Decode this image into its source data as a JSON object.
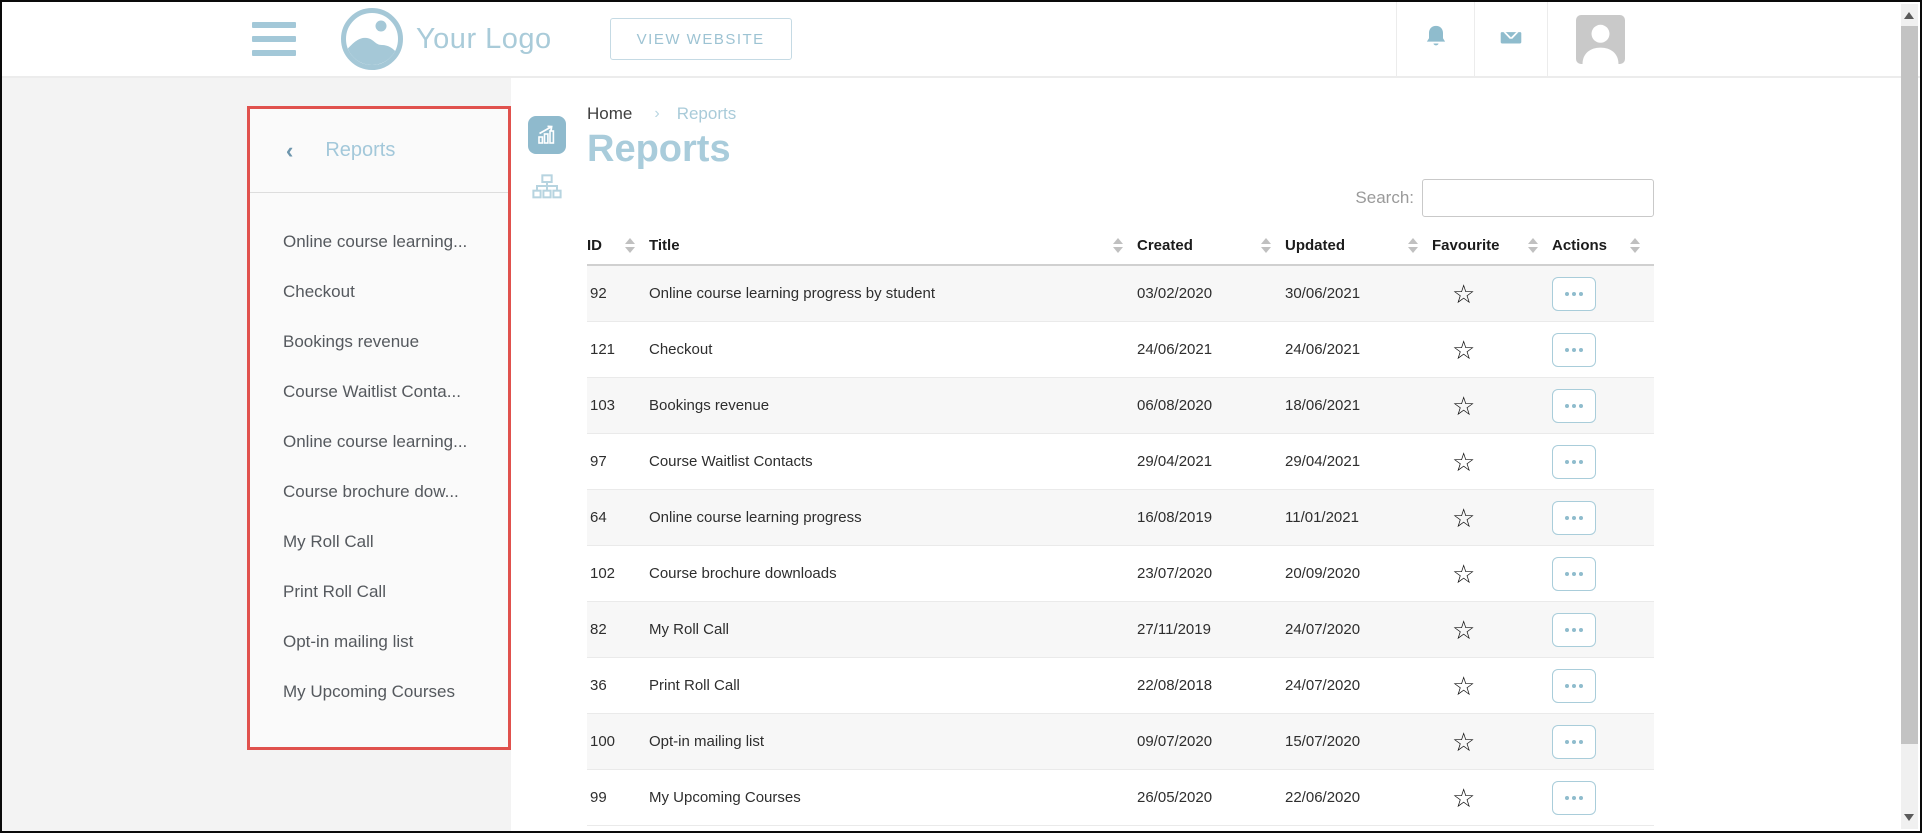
{
  "topbar": {
    "logo_text": "Your Logo",
    "view_website_label": "VIEW WEBSITE"
  },
  "sidebar": {
    "back_chevron": "‹",
    "title": "Reports",
    "items": [
      "Online course learning...",
      "Checkout",
      "Bookings revenue",
      "Course Waitlist Conta...",
      "Online course learning...",
      "Course brochure dow...",
      "My Roll Call",
      "Print Roll Call",
      "Opt-in mailing list",
      "My Upcoming Courses"
    ]
  },
  "breadcrumb": {
    "home": "Home",
    "separator": "›",
    "current": "Reports"
  },
  "page": {
    "title": "Reports"
  },
  "search": {
    "label": "Search:",
    "value": ""
  },
  "table": {
    "columns": [
      "ID",
      "Title",
      "Created",
      "Updated",
      "Favourite",
      "Actions"
    ],
    "favourite_icon": "☆",
    "rows": [
      {
        "id": "92",
        "title": "Online course learning progress by student",
        "created": "03/02/2020",
        "updated": "30/06/2021"
      },
      {
        "id": "121",
        "title": "Checkout",
        "created": "24/06/2021",
        "updated": "24/06/2021"
      },
      {
        "id": "103",
        "title": "Bookings revenue",
        "created": "06/08/2020",
        "updated": "18/06/2021"
      },
      {
        "id": "97",
        "title": "Course Waitlist Contacts",
        "created": "29/04/2021",
        "updated": "29/04/2021"
      },
      {
        "id": "64",
        "title": "Online course learning progress",
        "created": "16/08/2019",
        "updated": "11/01/2021"
      },
      {
        "id": "102",
        "title": "Course brochure downloads",
        "created": "23/07/2020",
        "updated": "20/09/2020"
      },
      {
        "id": "82",
        "title": "My Roll Call",
        "created": "27/11/2019",
        "updated": "24/07/2020"
      },
      {
        "id": "36",
        "title": "Print Roll Call",
        "created": "22/08/2018",
        "updated": "24/07/2020"
      },
      {
        "id": "100",
        "title": "Opt-in mailing list",
        "created": "09/07/2020",
        "updated": "15/07/2020"
      },
      {
        "id": "99",
        "title": "My Upcoming Courses",
        "created": "26/05/2020",
        "updated": "22/06/2020"
      }
    ]
  },
  "colors": {
    "brand_blue": "#a9cbd9",
    "icon_blue": "#8fbccd",
    "highlight_red": "#e0514d",
    "stripe_gray": "#f7f7f7"
  }
}
